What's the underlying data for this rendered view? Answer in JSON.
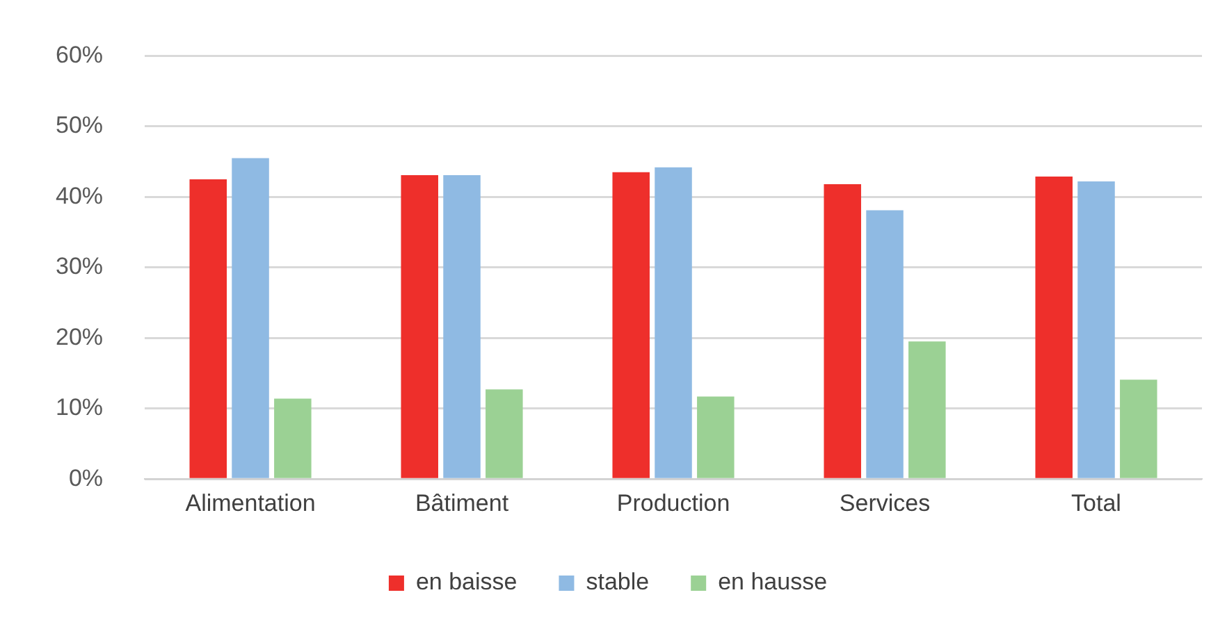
{
  "chart_data": {
    "type": "bar",
    "categories": [
      "Alimentation",
      "Bâtiment",
      "Production",
      "Services",
      "Total"
    ],
    "series": [
      {
        "name": "en baisse",
        "color": "#ee2f2b",
        "values": [
          42.5,
          43.1,
          43.5,
          41.8,
          42.9
        ]
      },
      {
        "name": "stable",
        "color": "#8fbae3",
        "values": [
          45.5,
          43.1,
          44.2,
          38.1,
          42.2
        ]
      },
      {
        "name": "en hausse",
        "color": "#9bd194",
        "values": [
          11.4,
          12.7,
          11.7,
          19.5,
          14.1
        ]
      }
    ],
    "ylim": [
      0,
      60
    ],
    "yticks": [
      {
        "value": 0,
        "label": "0%"
      },
      {
        "value": 10,
        "label": "10%"
      },
      {
        "value": 20,
        "label": "20%"
      },
      {
        "value": 30,
        "label": "30%"
      },
      {
        "value": 40,
        "label": "40%"
      },
      {
        "value": 50,
        "label": "50%"
      },
      {
        "value": 60,
        "label": "60%"
      }
    ],
    "grid": "y",
    "legend": "bottom"
  }
}
